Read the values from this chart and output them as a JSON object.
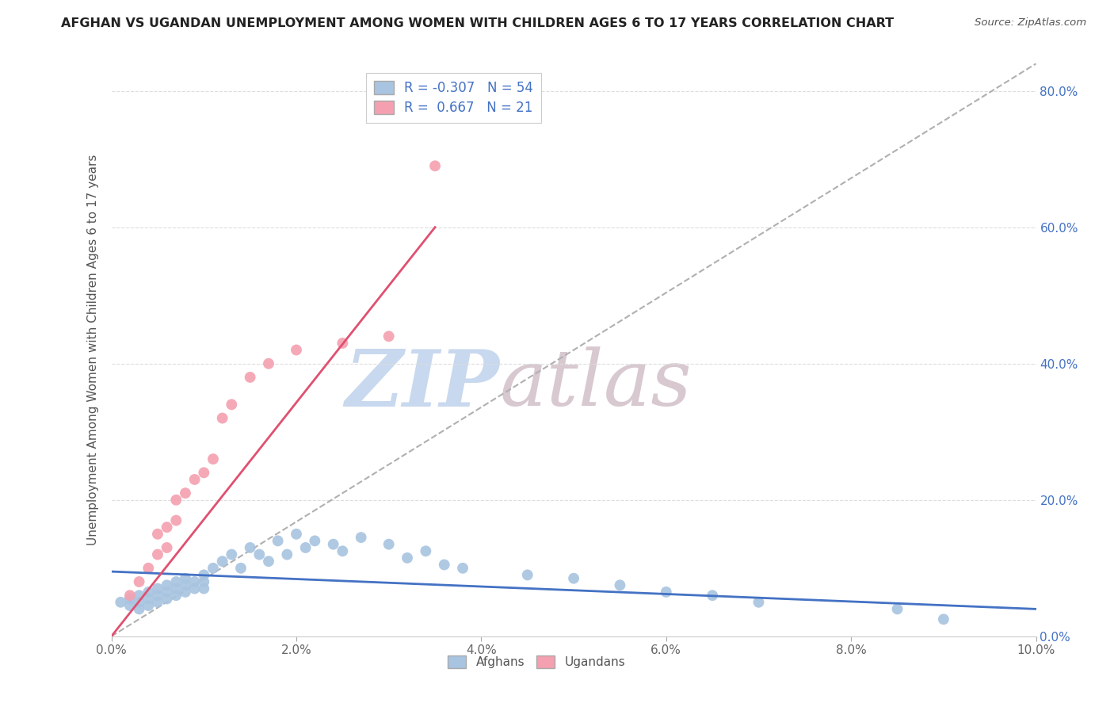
{
  "title": "AFGHAN VS UGANDAN UNEMPLOYMENT AMONG WOMEN WITH CHILDREN AGES 6 TO 17 YEARS CORRELATION CHART",
  "source": "Source: ZipAtlas.com",
  "ylabel": "Unemployment Among Women with Children Ages 6 to 17 years",
  "xlim": [
    0.0,
    0.1
  ],
  "ylim": [
    0.0,
    0.84
  ],
  "xticks": [
    0.0,
    0.02,
    0.04,
    0.06,
    0.08,
    0.1
  ],
  "xtick_labels": [
    "0.0%",
    "2.0%",
    "4.0%",
    "6.0%",
    "8.0%",
    "10.0%"
  ],
  "ytick_labels": [
    "0.0%",
    "20.0%",
    "40.0%",
    "60.0%",
    "80.0%"
  ],
  "yticks": [
    0.0,
    0.2,
    0.4,
    0.6,
    0.8
  ],
  "afghan_color": "#a8c4e0",
  "ugandan_color": "#f4a0b0",
  "afghan_line_color": "#4472c4",
  "ugandan_line_color": "#e05070",
  "diag_line_color": "#b0b0b0",
  "watermark_zip": "ZIP",
  "watermark_atlas": "atlas",
  "watermark_color_zip": "#c8d8ee",
  "watermark_color_atlas": "#d8c8d0",
  "legend_color": "#4472c4",
  "afghan_R": "-0.307",
  "afghan_N": "54",
  "ugandan_R": "0.667",
  "ugandan_N": "21",
  "afghan_scatter_x": [
    0.001,
    0.002,
    0.002,
    0.003,
    0.003,
    0.003,
    0.004,
    0.004,
    0.004,
    0.005,
    0.005,
    0.005,
    0.006,
    0.006,
    0.006,
    0.007,
    0.007,
    0.007,
    0.008,
    0.008,
    0.008,
    0.009,
    0.009,
    0.01,
    0.01,
    0.01,
    0.011,
    0.012,
    0.013,
    0.014,
    0.015,
    0.016,
    0.017,
    0.018,
    0.019,
    0.02,
    0.021,
    0.022,
    0.024,
    0.025,
    0.027,
    0.03,
    0.032,
    0.034,
    0.036,
    0.038,
    0.045,
    0.05,
    0.055,
    0.06,
    0.065,
    0.07,
    0.085,
    0.09
  ],
  "afghan_scatter_y": [
    0.05,
    0.055,
    0.045,
    0.06,
    0.05,
    0.04,
    0.065,
    0.055,
    0.045,
    0.07,
    0.06,
    0.05,
    0.075,
    0.065,
    0.055,
    0.08,
    0.07,
    0.06,
    0.085,
    0.075,
    0.065,
    0.08,
    0.07,
    0.09,
    0.08,
    0.07,
    0.1,
    0.11,
    0.12,
    0.1,
    0.13,
    0.12,
    0.11,
    0.14,
    0.12,
    0.15,
    0.13,
    0.14,
    0.135,
    0.125,
    0.145,
    0.135,
    0.115,
    0.125,
    0.105,
    0.1,
    0.09,
    0.085,
    0.075,
    0.065,
    0.06,
    0.05,
    0.04,
    0.025
  ],
  "ugandan_scatter_x": [
    0.002,
    0.003,
    0.004,
    0.005,
    0.005,
    0.006,
    0.006,
    0.007,
    0.007,
    0.008,
    0.009,
    0.01,
    0.011,
    0.012,
    0.013,
    0.015,
    0.017,
    0.02,
    0.025,
    0.03,
    0.035
  ],
  "ugandan_scatter_y": [
    0.06,
    0.08,
    0.1,
    0.12,
    0.15,
    0.13,
    0.16,
    0.17,
    0.2,
    0.21,
    0.23,
    0.24,
    0.26,
    0.32,
    0.34,
    0.38,
    0.4,
    0.42,
    0.43,
    0.44,
    0.69
  ],
  "afghan_line_x": [
    0.0,
    0.1
  ],
  "afghan_line_y": [
    0.095,
    0.04
  ],
  "ugandan_line_x": [
    0.0,
    0.035
  ],
  "ugandan_line_y": [
    0.0,
    0.6
  ],
  "diag_line_x": [
    0.0,
    0.1
  ],
  "diag_line_y": [
    0.0,
    0.84
  ],
  "background_color": "#ffffff",
  "grid_color": "#dddddd"
}
